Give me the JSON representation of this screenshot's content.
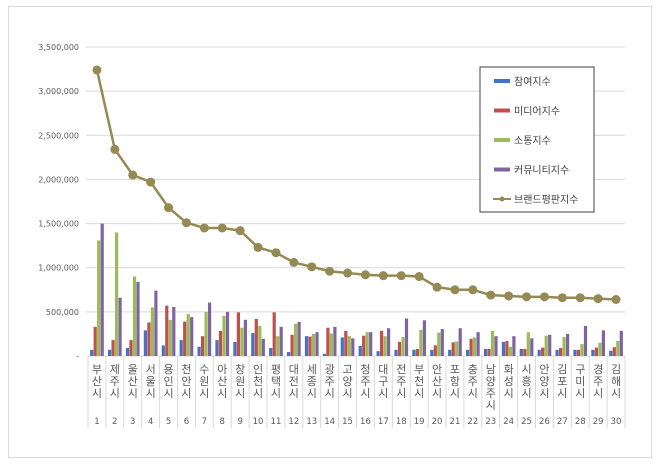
{
  "chart_data": {
    "type": "bar+line",
    "title": "",
    "xlabel": "",
    "ylabel": "",
    "ylim": [
      0,
      3500000
    ],
    "yticks": [
      0,
      500000,
      1000000,
      1500000,
      2000000,
      2500000,
      3000000,
      3500000
    ],
    "ytick_labels": [
      "-",
      "500,000",
      "1,000,000",
      "1,500,000",
      "2,000,000",
      "2,500,000",
      "3,000,000",
      "3,500,000"
    ],
    "grid": true,
    "legend_position": "upper right (inside)",
    "ranks": [
      1,
      2,
      3,
      4,
      5,
      6,
      7,
      8,
      9,
      10,
      11,
      12,
      13,
      14,
      15,
      16,
      17,
      18,
      19,
      20,
      21,
      22,
      23,
      24,
      25,
      26,
      27,
      28,
      29,
      30
    ],
    "categories": [
      "부산시",
      "제주시",
      "울산시",
      "서울시",
      "용인시",
      "천안시",
      "수원시",
      "아산시",
      "창원시",
      "인천시",
      "평택시",
      "대전시",
      "세종시",
      "광주시",
      "고양시",
      "청주시",
      "대구시",
      "전주시",
      "부천시",
      "안산시",
      "포항시",
      "충주시",
      "남양주시",
      "화성시",
      "시흥시",
      "안양시",
      "김포시",
      "구미시",
      "경주시",
      "김해시"
    ],
    "series": [
      {
        "name": "참여지수",
        "type": "bar",
        "color": "#4472C4",
        "values": [
          70000,
          70000,
          90000,
          290000,
          120000,
          180000,
          105000,
          180000,
          160000,
          260000,
          90000,
          45000,
          225000,
          25000,
          210000,
          115000,
          55000,
          70000,
          70000,
          70000,
          70000,
          70000,
          80000,
          160000,
          80000,
          70000,
          70000,
          70000,
          70000,
          60000
        ]
      },
      {
        "name": "미디어지수",
        "type": "bar",
        "color": "#C0504D",
        "values": [
          330000,
          180000,
          180000,
          380000,
          570000,
          390000,
          225000,
          285000,
          495000,
          420000,
          495000,
          240000,
          220000,
          320000,
          285000,
          230000,
          285000,
          160000,
          80000,
          120000,
          155000,
          195000,
          80000,
          170000,
          80000,
          95000,
          90000,
          70000,
          95000,
          100000
        ]
      },
      {
        "name": "소통지수",
        "type": "bar",
        "color": "#9BBB59",
        "values": [
          1310000,
          1400000,
          900000,
          550000,
          410000,
          475000,
          500000,
          455000,
          320000,
          340000,
          225000,
          365000,
          250000,
          255000,
          225000,
          270000,
          225000,
          215000,
          295000,
          265000,
          165000,
          210000,
          285000,
          105000,
          270000,
          230000,
          215000,
          135000,
          150000,
          170000
        ]
      },
      {
        "name": "커뮤니티지수",
        "type": "bar",
        "color": "#8064A2",
        "values": [
          1500000,
          660000,
          840000,
          740000,
          555000,
          440000,
          605000,
          500000,
          410000,
          195000,
          330000,
          385000,
          270000,
          330000,
          200000,
          270000,
          315000,
          425000,
          405000,
          305000,
          315000,
          270000,
          225000,
          225000,
          200000,
          240000,
          250000,
          340000,
          290000,
          285000
        ]
      },
      {
        "name": "브랜드평판지수",
        "type": "line",
        "color": "#948A54",
        "values": [
          3240000,
          2340000,
          2050000,
          1970000,
          1680000,
          1510000,
          1450000,
          1450000,
          1420000,
          1230000,
          1170000,
          1060000,
          1010000,
          960000,
          940000,
          920000,
          910000,
          910000,
          900000,
          780000,
          750000,
          750000,
          690000,
          680000,
          670000,
          670000,
          660000,
          660000,
          650000,
          640000
        ]
      }
    ]
  }
}
